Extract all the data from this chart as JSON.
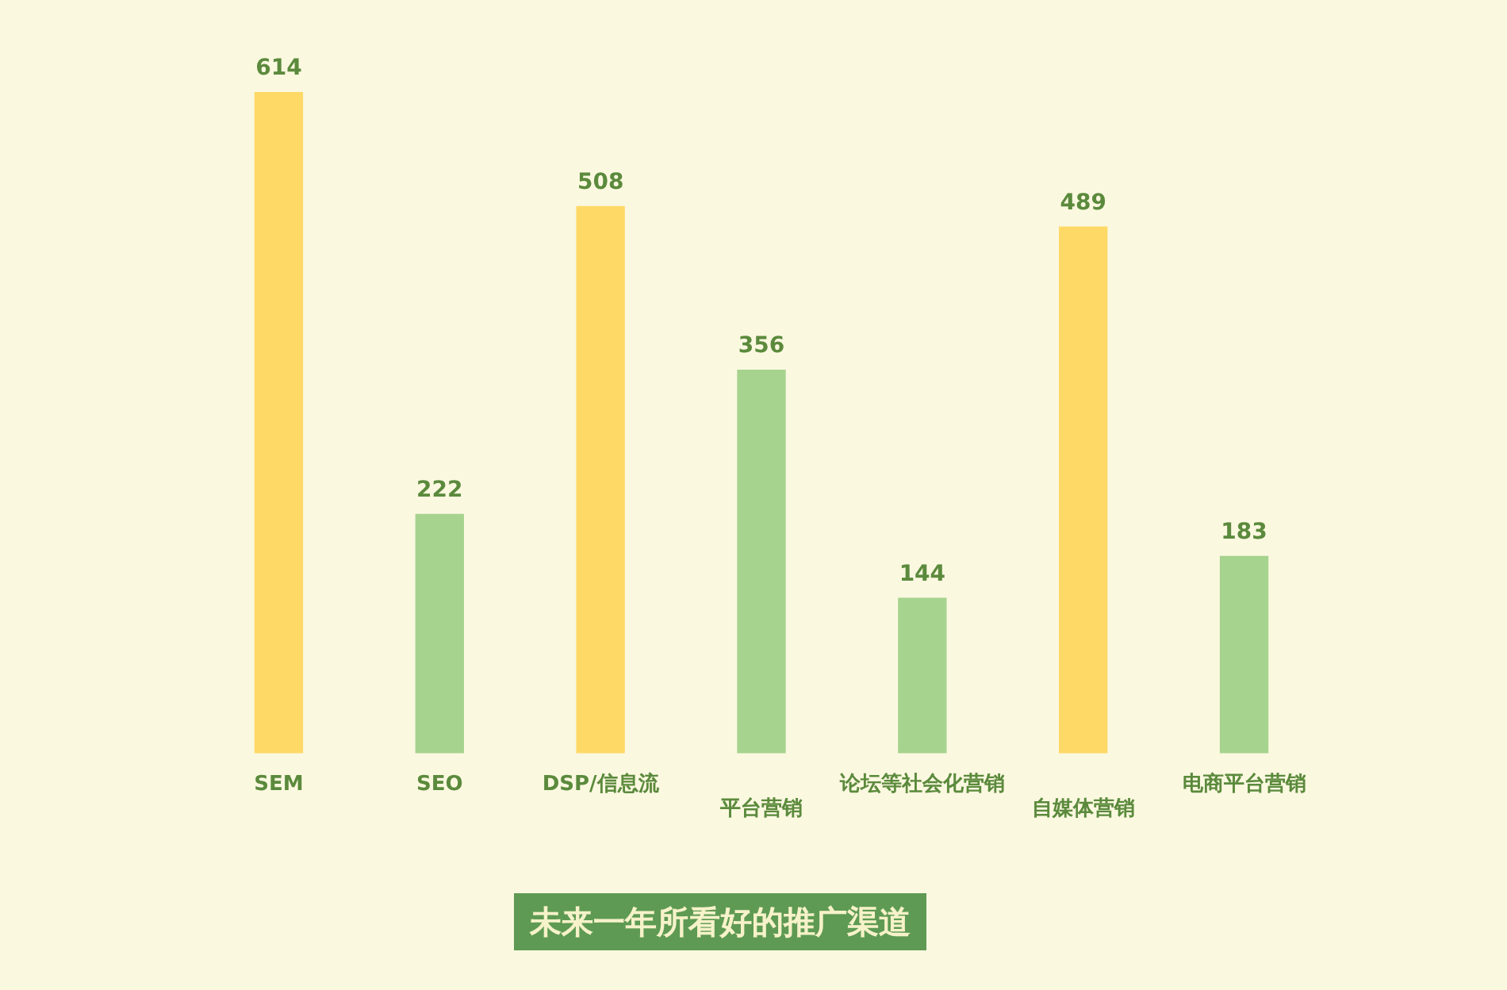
{
  "chart_data": {
    "type": "bar",
    "title": "未来一年所看好的推广渠道",
    "categories": [
      "SEM",
      "SEO",
      "DSP/信息流",
      "平台营销",
      "论坛等社会化营销",
      "自媒体营销",
      "电商平台营销"
    ],
    "values": [
      614,
      222,
      508,
      356,
      144,
      489,
      183
    ],
    "colors": [
      "#ffd966",
      "#a6d38e",
      "#ffd966",
      "#a6d38e",
      "#a6d38e",
      "#ffd966",
      "#a6d38e"
    ],
    "data_labels": true
  }
}
